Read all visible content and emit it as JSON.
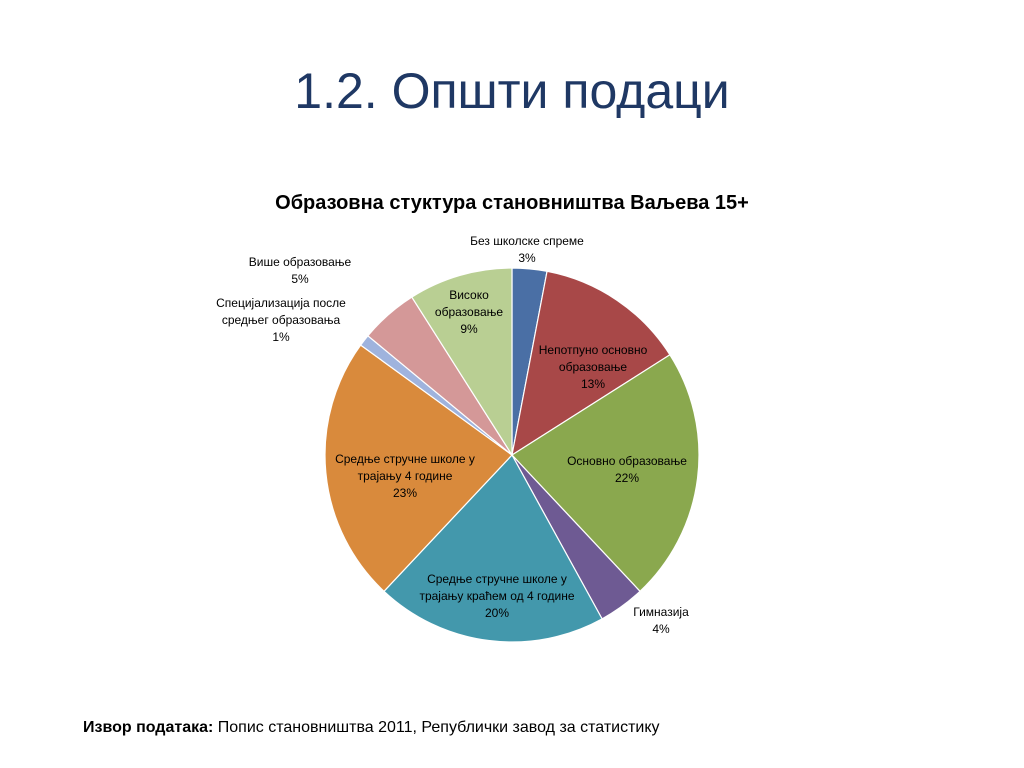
{
  "slide": {
    "title": "1.2. Општи подаци"
  },
  "source": {
    "label": "Извор података:",
    "text": "Попис становништва 2011, Републички завод за статистику"
  },
  "chart_data": {
    "type": "pie",
    "title": "Образовна стуктура становништва Ваљева 15+",
    "start": "12 o'clock",
    "direction": "clockwise",
    "slices": [
      {
        "label": [
          "Без школске спреме"
        ],
        "value": 3,
        "value_label": "3%",
        "color": "#4a6fa5"
      },
      {
        "label": [
          "Непотпуно основно",
          "образовање"
        ],
        "value": 13,
        "value_label": "13%",
        "color": "#a84848"
      },
      {
        "label": [
          "Основно образовање"
        ],
        "value": 22,
        "value_label": "22%",
        "color": "#8aa84e"
      },
      {
        "label": [
          "Гимназија"
        ],
        "value": 4,
        "value_label": "4%",
        "color": "#6e5a93"
      },
      {
        "label": [
          "Средње стручне школе у",
          "трајању краћем од 4 године"
        ],
        "value": 20,
        "value_label": "20%",
        "color": "#4398ac"
      },
      {
        "label": [
          "Средње стручне школе у",
          "трајању 4 године"
        ],
        "value": 23,
        "value_label": "23%",
        "color": "#d98a3c"
      },
      {
        "label": [
          "Специјализација после",
          "средњег образовања"
        ],
        "value": 1,
        "value_label": "1%",
        "color": "#9fb3dd"
      },
      {
        "label": [
          "Више образовање"
        ],
        "value": 5,
        "value_label": "5%",
        "color": "#d49898"
      },
      {
        "label": [
          "Високо",
          "образовање"
        ],
        "value": 9,
        "value_label": "9%",
        "color": "#b9cf93"
      }
    ]
  }
}
